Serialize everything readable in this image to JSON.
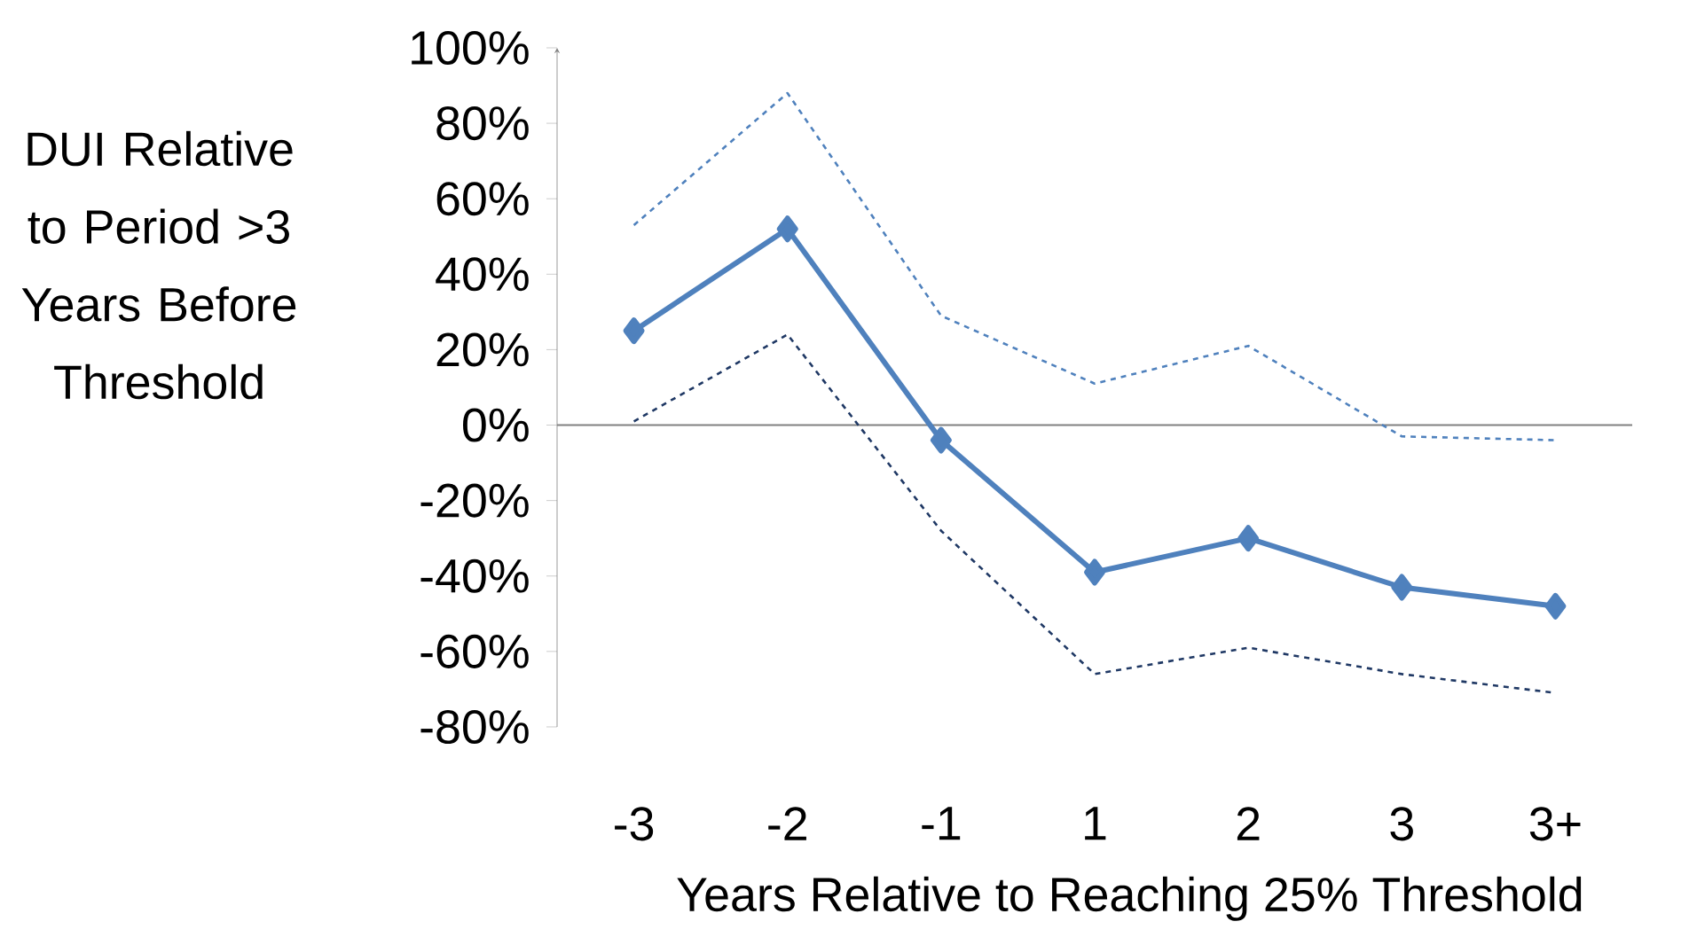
{
  "chart_data": {
    "type": "line",
    "xlabel": "Years Relative to Reaching 25% Threshold",
    "ylabel": "DUI Relative to Period >3 Years Before Threshold",
    "categories": [
      "-3",
      "-2",
      "-1",
      "1",
      "2",
      "3",
      "3+"
    ],
    "series": [
      {
        "color": "#4f81bd",
        "marker": "diamond",
        "line_style": "solid",
        "values": [
          25,
          52,
          -4,
          -39,
          -30,
          -43,
          -48
        ]
      },
      {
        "color": "#4f81bd",
        "marker": "none",
        "line_style": "dashed",
        "values": [
          53,
          88,
          29,
          11,
          21,
          -3,
          -4
        ]
      },
      {
        "color": "#1f3864",
        "marker": "none",
        "line_style": "dashed",
        "values": [
          1,
          24,
          -28,
          -66,
          -59,
          -66,
          -71
        ]
      }
    ],
    "ylim": [
      -80,
      100
    ],
    "yticks": [
      {
        "value": 100,
        "label": "100%"
      },
      {
        "value": 80,
        "label": "80%"
      },
      {
        "value": 60,
        "label": "60%"
      },
      {
        "value": 40,
        "label": "40%"
      },
      {
        "value": 20,
        "label": "20%"
      },
      {
        "value": 0,
        "label": "0%"
      },
      {
        "value": -20,
        "label": "-20%"
      },
      {
        "value": -40,
        "label": "-40%"
      },
      {
        "value": -60,
        "label": "-60%"
      },
      {
        "value": -80,
        "label": "-80%"
      }
    ]
  }
}
